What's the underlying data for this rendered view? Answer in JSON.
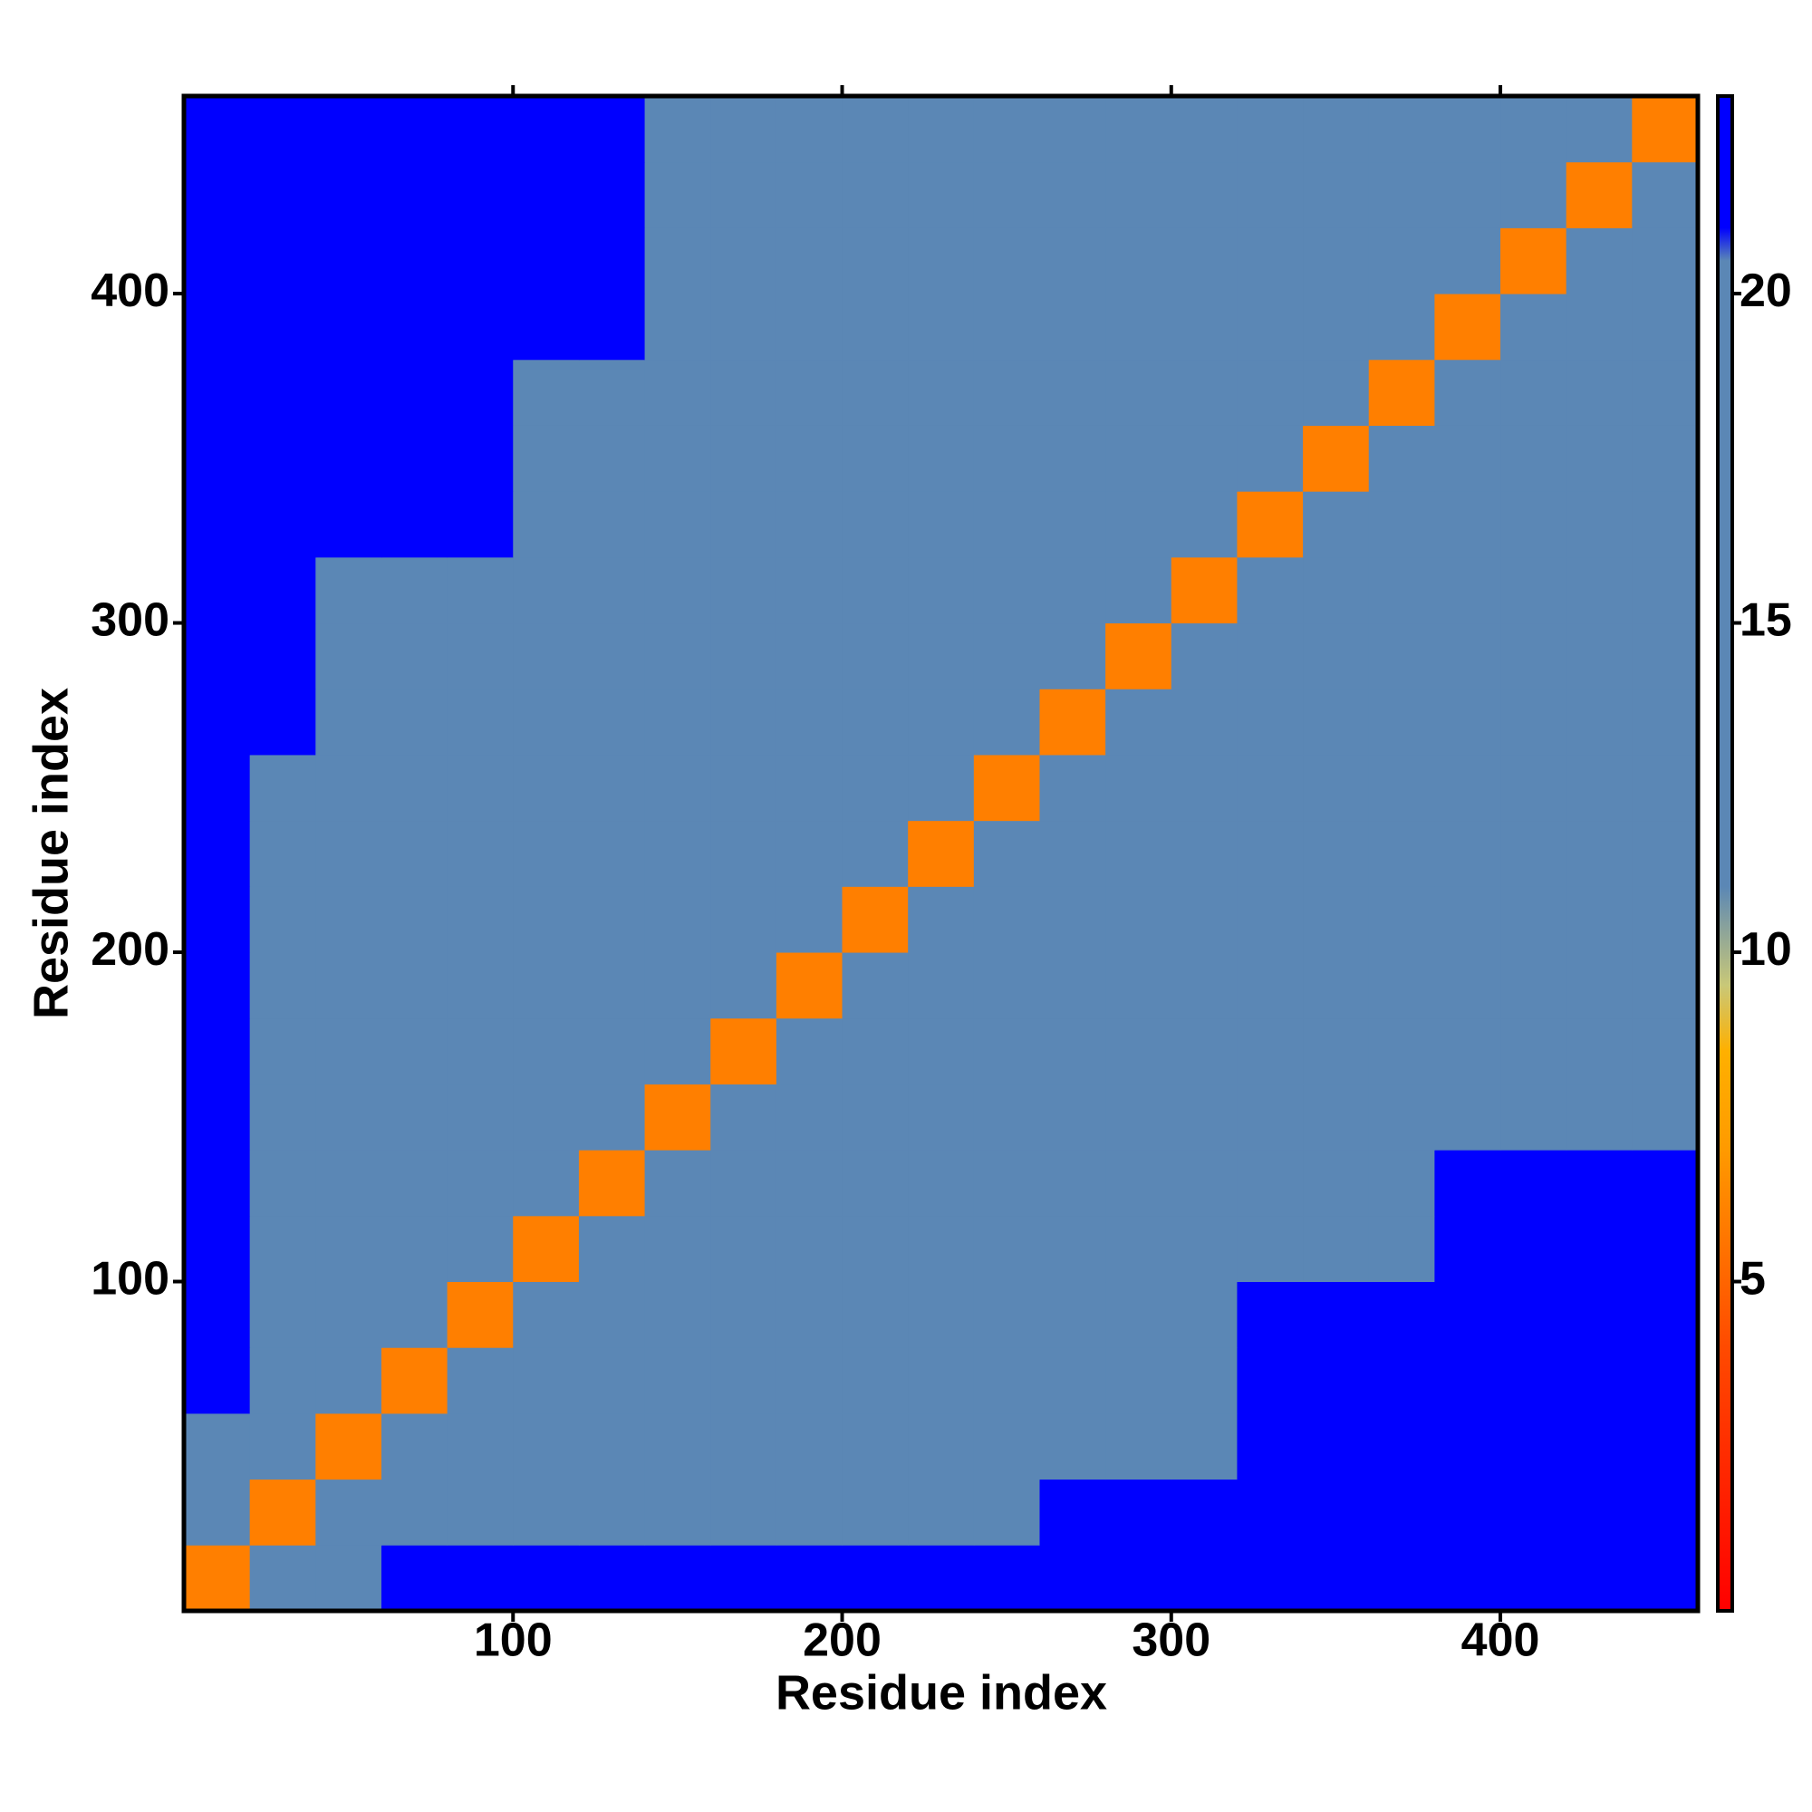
{
  "chart_data": {
    "type": "heatmap",
    "xlabel": "Residue index",
    "ylabel": "Residue index",
    "bins": [
      0,
      20,
      40,
      60,
      80,
      100,
      120,
      140,
      160,
      180,
      200,
      220,
      240,
      260,
      280,
      300,
      320,
      340,
      360,
      380,
      400,
      420,
      440,
      460
    ],
    "xlim": [
      0,
      460
    ],
    "ylim": [
      0,
      460
    ],
    "xticks": [
      100,
      200,
      300,
      400
    ],
    "yticks": [
      100,
      200,
      300,
      400
    ],
    "colorbar_lim": [
      0,
      23
    ],
    "colorbar_ticks": [
      5,
      10,
      15,
      20
    ],
    "colorscale": [
      [
        0,
        "#ff0000"
      ],
      [
        4,
        "#ff4a00"
      ],
      [
        7,
        "#ff9a00"
      ],
      [
        8.5,
        "#ffb000"
      ],
      [
        9.5,
        "#c9c878"
      ],
      [
        11,
        "#5b87b5"
      ],
      [
        20.5,
        "#5b87b5"
      ],
      [
        21,
        "#0000ff"
      ],
      [
        23,
        "#0000ff"
      ]
    ],
    "values": [
      [
        6,
        12,
        15,
        23,
        23,
        23,
        23,
        23,
        23,
        23,
        23,
        23,
        23,
        23,
        23,
        23,
        23,
        23,
        23,
        23,
        23,
        23,
        23
      ],
      [
        12,
        6,
        12,
        15,
        19,
        19,
        19,
        19,
        19,
        19,
        19,
        19,
        19,
        23,
        23,
        23,
        23,
        23,
        23,
        23,
        23,
        23,
        23
      ],
      [
        15,
        12,
        6,
        12,
        15,
        17,
        17,
        17,
        17,
        17,
        17,
        17,
        17,
        20,
        20,
        20,
        23,
        23,
        23,
        23,
        23,
        23,
        23
      ],
      [
        23,
        15,
        12,
        6,
        12,
        15,
        17,
        17,
        17,
        17,
        17,
        17,
        17,
        20,
        20,
        20,
        23,
        23,
        23,
        23,
        23,
        23,
        23
      ],
      [
        23,
        19,
        15,
        12,
        6,
        12,
        15,
        17,
        17,
        17,
        17,
        17,
        17,
        20,
        20,
        20,
        23,
        23,
        23,
        23,
        23,
        23,
        23
      ],
      [
        23,
        19,
        17,
        15,
        12,
        6,
        12,
        15,
        17,
        17,
        17,
        17,
        17,
        17,
        17,
        17,
        17,
        18,
        18,
        22,
        22,
        22,
        22
      ],
      [
        23,
        19,
        17,
        17,
        15,
        12,
        6,
        12,
        15,
        17,
        17,
        17,
        17,
        17,
        17,
        17,
        17,
        18,
        18,
        22,
        22,
        22,
        22
      ],
      [
        23,
        19,
        17,
        17,
        17,
        15,
        12,
        6,
        12,
        15,
        17,
        17,
        17,
        17,
        17,
        17,
        17,
        18,
        18,
        18,
        20,
        20,
        20
      ],
      [
        23,
        19,
        17,
        17,
        17,
        17,
        15,
        12,
        6,
        12,
        15,
        17,
        17,
        17,
        17,
        17,
        17,
        18,
        18,
        18,
        20,
        20,
        20
      ],
      [
        23,
        19,
        17,
        17,
        17,
        17,
        17,
        15,
        12,
        6,
        12,
        15,
        17,
        17,
        17,
        17,
        17,
        18,
        18,
        18,
        20,
        20,
        20
      ],
      [
        23,
        19,
        17,
        17,
        17,
        17,
        17,
        17,
        15,
        12,
        6,
        12,
        15,
        17,
        17,
        17,
        17,
        18,
        18,
        18,
        20,
        20,
        20
      ],
      [
        23,
        19,
        17,
        17,
        17,
        17,
        17,
        17,
        17,
        15,
        12,
        6,
        12,
        15,
        17,
        17,
        17,
        18,
        18,
        18,
        20,
        20,
        20
      ],
      [
        23,
        19,
        17,
        17,
        17,
        17,
        17,
        17,
        17,
        17,
        15,
        12,
        6,
        12,
        15,
        17,
        17,
        18,
        18,
        18,
        20,
        20,
        20
      ],
      [
        23,
        23,
        20,
        20,
        20,
        17,
        17,
        17,
        17,
        17,
        17,
        15,
        12,
        6,
        12,
        15,
        17,
        18,
        18,
        18,
        20,
        20,
        20
      ],
      [
        23,
        23,
        20,
        20,
        20,
        17,
        17,
        17,
        17,
        17,
        17,
        17,
        15,
        12,
        6,
        12,
        15,
        18,
        18,
        18,
        20,
        20,
        20
      ],
      [
        23,
        23,
        20,
        20,
        20,
        17,
        17,
        17,
        17,
        17,
        17,
        17,
        17,
        15,
        12,
        6,
        12,
        15,
        18,
        18,
        20,
        20,
        20
      ],
      [
        23,
        23,
        23,
        23,
        23,
        17,
        17,
        17,
        17,
        17,
        17,
        17,
        17,
        17,
        15,
        12,
        6,
        12,
        15,
        18,
        20,
        20,
        20
      ],
      [
        23,
        23,
        23,
        23,
        23,
        18,
        18,
        18,
        18,
        18,
        18,
        18,
        18,
        18,
        18,
        15,
        12,
        6,
        12,
        15,
        16,
        16,
        16
      ],
      [
        23,
        23,
        23,
        23,
        23,
        18,
        18,
        18,
        18,
        18,
        18,
        18,
        18,
        18,
        18,
        18,
        15,
        12,
        6,
        12,
        15,
        16,
        16
      ],
      [
        23,
        23,
        23,
        23,
        23,
        22,
        22,
        18,
        18,
        18,
        18,
        18,
        18,
        18,
        18,
        18,
        18,
        15,
        12,
        6,
        12,
        15,
        16
      ],
      [
        23,
        23,
        23,
        23,
        23,
        22,
        22,
        20,
        20,
        20,
        20,
        20,
        20,
        20,
        20,
        20,
        20,
        16,
        15,
        12,
        6,
        12,
        15
      ],
      [
        23,
        23,
        23,
        23,
        23,
        22,
        22,
        20,
        20,
        20,
        20,
        20,
        20,
        20,
        20,
        20,
        20,
        16,
        16,
        15,
        12,
        6,
        12
      ],
      [
        23,
        23,
        23,
        23,
        23,
        22,
        22,
        20,
        20,
        20,
        20,
        20,
        20,
        20,
        20,
        20,
        20,
        16,
        16,
        16,
        15,
        12,
        6
      ]
    ]
  }
}
